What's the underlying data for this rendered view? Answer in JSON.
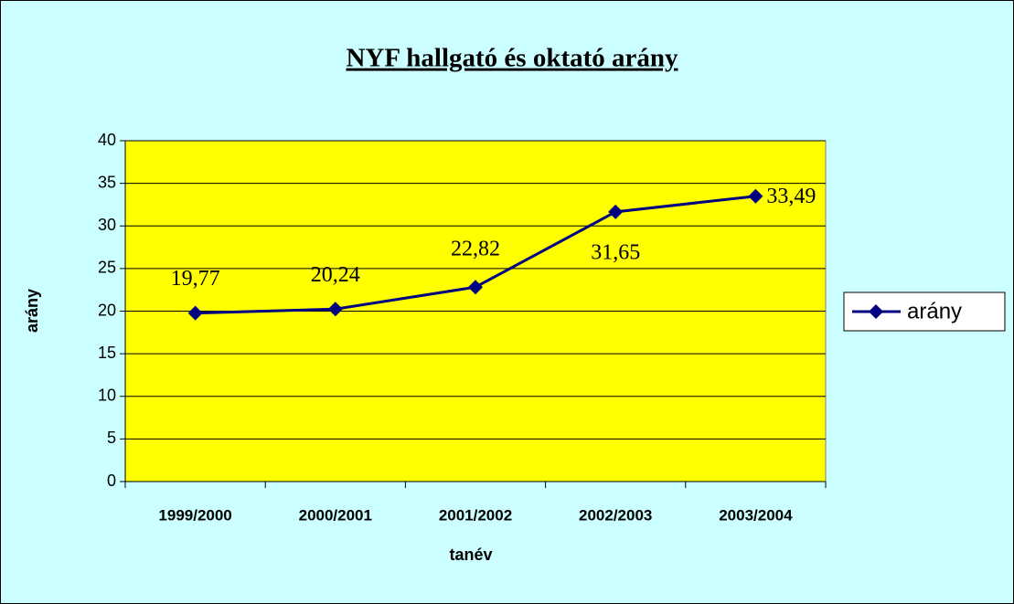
{
  "chart_data": {
    "type": "line",
    "title": "NYF hallgató és oktató arány",
    "x_label": "tanév",
    "y_label": "arány",
    "categories": [
      "1999/2000",
      "2000/2001",
      "2001/2002",
      "2002/2003",
      "2003/2004"
    ],
    "series": [
      {
        "name": "arány",
        "color": "#000080",
        "values": [
          19.77,
          20.24,
          22.82,
          31.65,
          33.49
        ],
        "value_labels": [
          "19,77",
          "20,24",
          "22,82",
          "31,65",
          "33,49"
        ]
      }
    ],
    "ylim": [
      0,
      40
    ],
    "yticks": [
      0,
      5,
      10,
      15,
      20,
      25,
      30,
      35,
      40
    ],
    "grid": true,
    "legend": "right"
  }
}
